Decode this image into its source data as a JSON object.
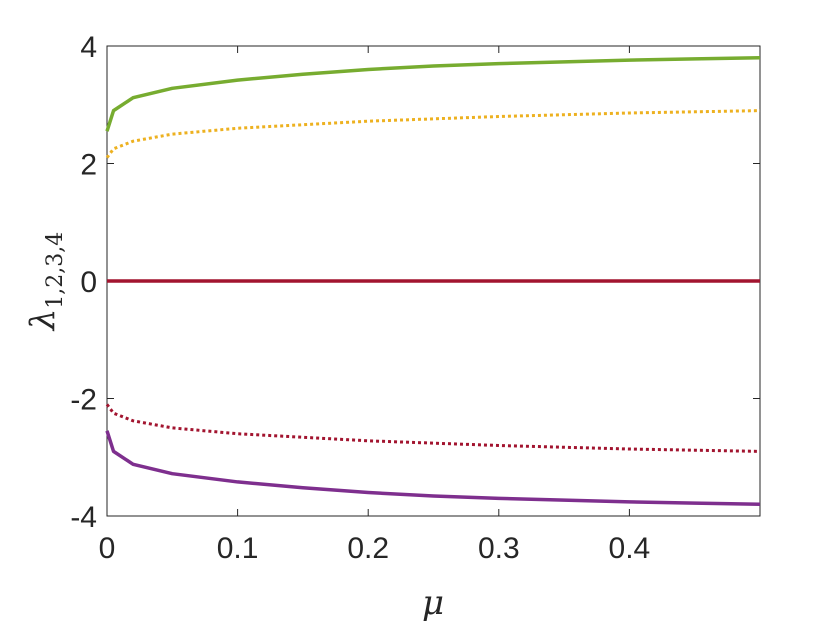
{
  "chart_data": {
    "type": "line",
    "xlabel": "μ",
    "ylabel": "λ",
    "ylabel_subscript": "1,2,3,4",
    "xlim": [
      0,
      0.5
    ],
    "ylim": [
      -4,
      4
    ],
    "xticks": [
      0,
      0.1,
      0.2,
      0.3,
      0.4
    ],
    "xtick_labels": [
      "0",
      "0.1",
      "0.2",
      "0.3",
      "0.4"
    ],
    "yticks": [
      -4,
      -2,
      0,
      2,
      4
    ],
    "ytick_labels": [
      "-4",
      "-2",
      "0",
      "2",
      "4"
    ],
    "grid": false,
    "series": [
      {
        "color": "#77AC30",
        "dash": "solid",
        "x": [
          0,
          0.005,
          0.02,
          0.05,
          0.1,
          0.15,
          0.2,
          0.25,
          0.3,
          0.35,
          0.4,
          0.45,
          0.5
        ],
        "y": [
          2.55,
          2.9,
          3.12,
          3.28,
          3.42,
          3.52,
          3.6,
          3.66,
          3.7,
          3.73,
          3.76,
          3.78,
          3.8
        ]
      },
      {
        "color": "#EDB120",
        "dash": "dotted",
        "x": [
          0,
          0.005,
          0.02,
          0.05,
          0.1,
          0.15,
          0.2,
          0.25,
          0.3,
          0.35,
          0.4,
          0.45,
          0.5
        ],
        "y": [
          2.1,
          2.25,
          2.38,
          2.5,
          2.6,
          2.66,
          2.72,
          2.76,
          2.8,
          2.83,
          2.86,
          2.88,
          2.9
        ]
      },
      {
        "color": "#A2142F",
        "dash": "solid",
        "x": [
          0,
          0.5
        ],
        "y": [
          0,
          0
        ]
      },
      {
        "color": "#A2142F",
        "dash": "dotted",
        "x": [
          0,
          0.005,
          0.02,
          0.05,
          0.1,
          0.15,
          0.2,
          0.25,
          0.3,
          0.35,
          0.4,
          0.45,
          0.5
        ],
        "y": [
          -2.1,
          -2.25,
          -2.38,
          -2.5,
          -2.6,
          -2.66,
          -2.72,
          -2.76,
          -2.8,
          -2.83,
          -2.86,
          -2.88,
          -2.9
        ]
      },
      {
        "color": "#7E2F8E",
        "dash": "solid",
        "x": [
          0,
          0.005,
          0.02,
          0.05,
          0.1,
          0.15,
          0.2,
          0.25,
          0.3,
          0.35,
          0.4,
          0.45,
          0.5
        ],
        "y": [
          -2.55,
          -2.9,
          -3.12,
          -3.28,
          -3.42,
          -3.52,
          -3.6,
          -3.66,
          -3.7,
          -3.73,
          -3.76,
          -3.78,
          -3.8
        ]
      }
    ]
  }
}
